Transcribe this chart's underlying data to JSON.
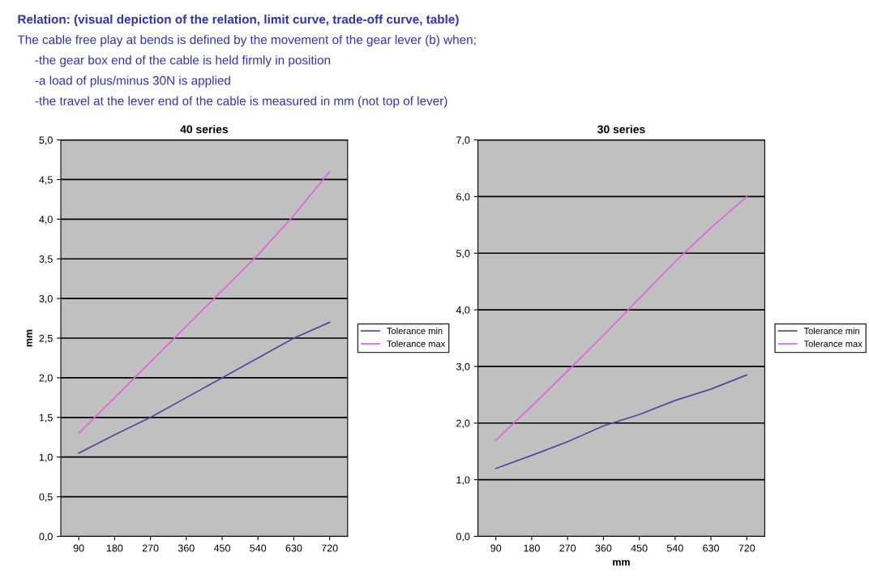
{
  "chart_data": [
    {
      "type": "line",
      "title": "40 series",
      "ylabel": "mm",
      "annotations": [
        "Relation: (visual depiction of the relation, limit curve, trade-off curve, table)",
        "The cable free play at bends is defined by the movement of the gear lever (b) when;",
        "-the gear box end of the cable is held firmly in position",
        "-a load of plus/minus 30N is applied",
        "-the travel at the lever end of the cable is measured in mm (not top of lever)"
      ],
      "categories": [
        "90",
        "180",
        "270",
        "360",
        "450",
        "540",
        "630",
        "720"
      ],
      "series": [
        {
          "name": "Tolerance min",
          "color": "#4b4b9b",
          "values": [
            1.05,
            1.28,
            1.5,
            1.75,
            2.0,
            2.25,
            2.5,
            2.7
          ]
        },
        {
          "name": "Tolerance max",
          "color": "#e060e0",
          "values": [
            1.3,
            1.75,
            2.2,
            2.65,
            3.1,
            3.55,
            4.05,
            4.6
          ]
        }
      ],
      "ylim": [
        0,
        5
      ],
      "yticks": [
        {
          "value": 0,
          "label": "0,0"
        },
        {
          "value": 0.5,
          "label": "0,5"
        },
        {
          "value": 1,
          "label": "1,0"
        },
        {
          "value": 1.5,
          "label": "1,5"
        },
        {
          "value": 2,
          "label": "2,0"
        },
        {
          "value": 2.5,
          "label": "2,5"
        },
        {
          "value": 3,
          "label": "3,0"
        },
        {
          "value": 3.5,
          "label": "3,5"
        },
        {
          "value": 4,
          "label": "4,0"
        },
        {
          "value": 4.5,
          "label": "4,5"
        },
        {
          "value": 5,
          "label": "5,0"
        }
      ],
      "grid": "y",
      "legend": "right",
      "marker": "none",
      "line_style": "solid"
    },
    {
      "type": "line",
      "title": "30 series",
      "xlabel": "mm",
      "categories": [
        "90",
        "180",
        "270",
        "360",
        "450",
        "540",
        "630",
        "720"
      ],
      "series": [
        {
          "name": "Tolerance min",
          "color": "#4b4b9b",
          "values": [
            1.2,
            1.43,
            1.67,
            1.95,
            2.15,
            2.4,
            2.6,
            2.85
          ]
        },
        {
          "name": "Tolerance max",
          "color": "#e060e0",
          "values": [
            1.7,
            2.3,
            2.92,
            3.55,
            4.2,
            4.85,
            5.45,
            6.0
          ]
        }
      ],
      "ylim": [
        0,
        7
      ],
      "yticks": [
        {
          "value": 0,
          "label": "0,0"
        },
        {
          "value": 1,
          "label": "1,0"
        },
        {
          "value": 2,
          "label": "2,0"
        },
        {
          "value": 3,
          "label": "3,0"
        },
        {
          "value": 4,
          "label": "4,0"
        },
        {
          "value": 5,
          "label": "5,0"
        },
        {
          "value": 6,
          "label": "6,0"
        },
        {
          "value": 7,
          "label": "7,0"
        }
      ],
      "grid": "y",
      "legend": "right",
      "marker": "none",
      "line_style": "solid"
    }
  ]
}
